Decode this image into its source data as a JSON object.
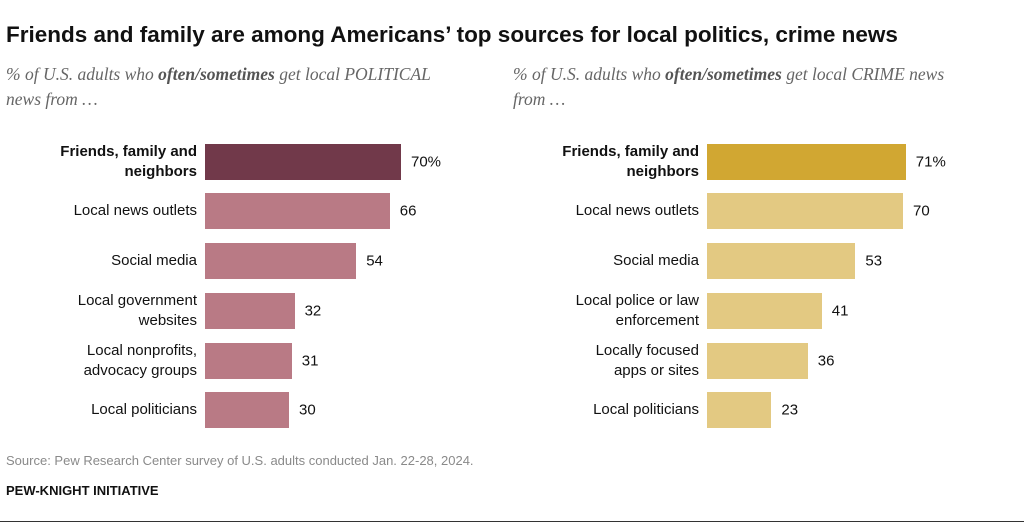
{
  "title": "Friends and family are among Americans’ top sources for local politics, crime news",
  "chart_data": [
    {
      "type": "bar",
      "orientation": "horizontal",
      "subtitle": [
        "% of U.S. adults who ",
        "often/sometimes",
        " get local POLITICAL news from …"
      ],
      "categories": [
        "Friends, family and neighbors",
        "Local news outlets",
        "Social media",
        "Local government websites",
        "Local nonprofits, advocacy groups",
        "Local politicians"
      ],
      "values": [
        70,
        66,
        54,
        32,
        31,
        30
      ],
      "value_labels": [
        "70%",
        "66",
        "54",
        "32",
        "31",
        "30"
      ],
      "colors": [
        "#71394a",
        "#b97a85",
        "#b97a85",
        "#b97a85",
        "#b97a85",
        "#b97a85"
      ]
    },
    {
      "type": "bar",
      "orientation": "horizontal",
      "subtitle": [
        "% of U.S. adults who ",
        "often/sometimes",
        " get local CRIME news from …"
      ],
      "categories": [
        "Friends, family and neighbors",
        "Local news outlets",
        "Social media",
        "Local police or law enforcement",
        "Locally focused apps or sites",
        "Local politicians"
      ],
      "values": [
        71,
        70,
        53,
        41,
        36,
        23
      ],
      "value_labels": [
        "71%",
        "70",
        "53",
        "41",
        "36",
        "23"
      ],
      "colors": [
        "#d1a732",
        "#e3c982",
        "#e3c982",
        "#e3c982",
        "#e3c982",
        "#e3c982"
      ]
    }
  ],
  "source": "Source: Pew Research Center survey of U.S. adults conducted Jan. 22-28, 2024.",
  "credit": "PEW-KNIGHT INITIATIVE"
}
